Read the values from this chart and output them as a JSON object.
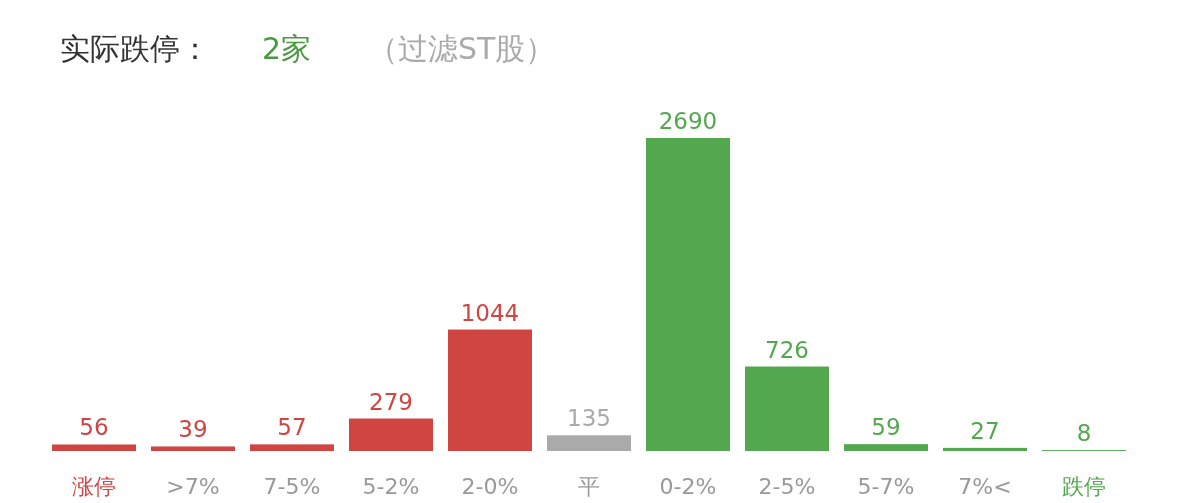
{
  "chart_data": {
    "type": "bar",
    "annotations": [
      "实际跌停：",
      "2家",
      "（过滤ST股）"
    ],
    "categories": [
      "涨停",
      ">7%",
      "7-5%",
      "5-2%",
      "2-0%",
      "平",
      "0-2%",
      "2-5%",
      "5-7%",
      "7%<",
      "跌停"
    ],
    "values": [
      56,
      39,
      57,
      279,
      1044,
      135,
      2690,
      726,
      59,
      27,
      8
    ],
    "colors": [
      "#d04542",
      "#d04542",
      "#d04542",
      "#d04542",
      "#d04542",
      "#aaaaaa",
      "#53a84f",
      "#53a84f",
      "#53a84f",
      "#53a84f",
      "#53a84f"
    ],
    "data_labels": true
  }
}
